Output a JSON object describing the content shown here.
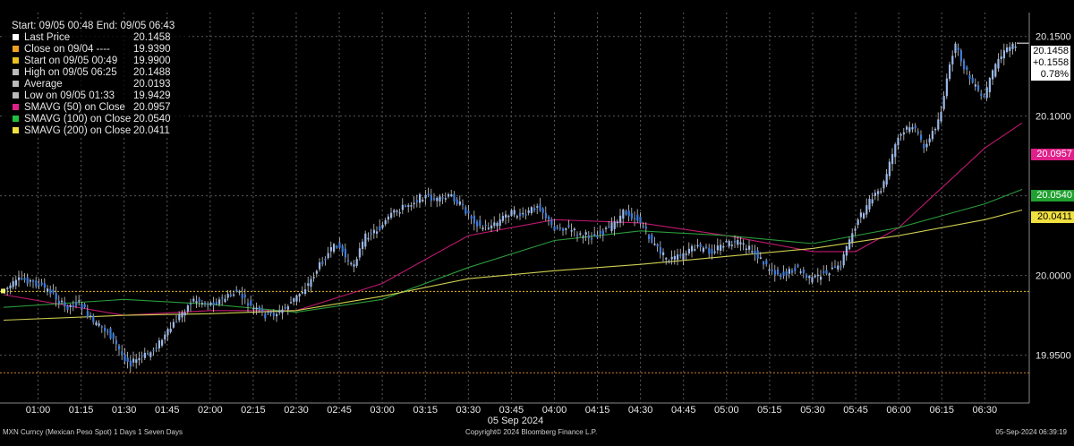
{
  "legend": {
    "header": "Start: 09/05 00:48  End: 09/05 06:43",
    "rows": [
      {
        "label": "Last Price",
        "value": "20.1458",
        "color": "#ffffff"
      },
      {
        "label": "Close on 09/04 ----",
        "value": "19.9390",
        "color": "#f0a020"
      },
      {
        "label": "Start on 09/05 00:49",
        "value": "19.9900",
        "color": "#e8c020"
      },
      {
        "label": "High on 09/05 06:25",
        "value": "20.1488",
        "color": "#bbbbbb"
      },
      {
        "label": "Average",
        "value": "20.0193",
        "color": "#bbbbbb"
      },
      {
        "label": "Low on 09/05 01:33",
        "value": "19.9429",
        "color": "#bbbbbb"
      },
      {
        "label": "SMAVG (50)  on Close",
        "value": "20.0957",
        "color": "#e0208a"
      },
      {
        "label": "SMAVG (100)  on Close",
        "value": "20.0540",
        "color": "#20c040"
      },
      {
        "label": "SMAVG (200)  on Close",
        "value": "20.0411",
        "color": "#f0e040"
      }
    ]
  },
  "tags": {
    "last": "20.1458",
    "change": "+0.1558",
    "pct": "0.78%",
    "sma50": "20.0957",
    "sma100": "20.0540",
    "sma200": "20.0411"
  },
  "colors": {
    "candle": "#3d7ad8",
    "wick": "#cccccc",
    "sma50": "#c01870",
    "sma100": "#2a9a3a",
    "sma200": "#cfcf50",
    "start_line": "#e8c020",
    "close_line": "#d08030",
    "grid": "#5a5a5a"
  },
  "footer": {
    "left": "MXN Curncy (Mexican Peso Spot) 1 Days 1 Seven Days",
    "center": "Copyright© 2024 Bloomberg Finance L.P.",
    "right": "05-Sep-2024 06:39:19"
  },
  "chart_data": {
    "type": "line",
    "date_label": "05 Sep 2024",
    "x_ticks": [
      "01:00",
      "01:15",
      "01:30",
      "01:45",
      "02:00",
      "02:15",
      "02:30",
      "02:45",
      "03:00",
      "03:15",
      "03:30",
      "03:45",
      "04:00",
      "04:15",
      "04:30",
      "04:45",
      "05:00",
      "05:15",
      "05:30",
      "05:45",
      "06:00",
      "06:15",
      "06:30"
    ],
    "y_ticks": [
      "19.9500",
      "20.0000",
      "20.0500",
      "20.1000",
      "20.1500"
    ],
    "ylim": [
      19.92,
      20.165
    ],
    "xlim": [
      "00:48",
      "06:43"
    ],
    "reference_lines": [
      {
        "name": "Start on 09/05 00:49",
        "value": 19.99
      },
      {
        "name": "Close on 09/04",
        "value": 19.939
      }
    ],
    "series": [
      {
        "name": "Last Price",
        "x": [
          "00:48",
          "00:55",
          "01:00",
          "01:05",
          "01:10",
          "01:15",
          "01:20",
          "01:25",
          "01:30",
          "01:33",
          "01:40",
          "01:45",
          "01:50",
          "01:55",
          "02:00",
          "02:05",
          "02:10",
          "02:15",
          "02:20",
          "02:25",
          "02:30",
          "02:35",
          "02:40",
          "02:45",
          "02:50",
          "02:55",
          "03:00",
          "03:05",
          "03:10",
          "03:15",
          "03:20",
          "03:25",
          "03:30",
          "03:35",
          "03:40",
          "03:45",
          "03:50",
          "03:55",
          "04:00",
          "04:05",
          "04:10",
          "04:15",
          "04:20",
          "04:25",
          "04:30",
          "04:35",
          "04:40",
          "04:45",
          "04:50",
          "04:55",
          "05:00",
          "05:05",
          "05:10",
          "05:15",
          "05:20",
          "05:25",
          "05:30",
          "05:35",
          "05:40",
          "05:45",
          "05:50",
          "05:55",
          "06:00",
          "06:05",
          "06:10",
          "06:15",
          "06:20",
          "06:25",
          "06:30",
          "06:35",
          "06:40",
          "06:43"
        ],
        "values": [
          19.99,
          19.998,
          19.995,
          19.99,
          19.98,
          19.983,
          19.97,
          19.965,
          19.95,
          19.945,
          19.952,
          19.962,
          19.975,
          19.985,
          19.982,
          19.985,
          19.99,
          19.98,
          19.975,
          19.977,
          19.985,
          19.995,
          20.01,
          20.02,
          20.005,
          20.025,
          20.03,
          20.04,
          20.045,
          20.05,
          20.047,
          20.05,
          20.04,
          20.03,
          20.032,
          20.04,
          20.037,
          20.045,
          20.03,
          20.03,
          20.025,
          20.025,
          20.03,
          20.04,
          20.035,
          20.02,
          20.01,
          20.012,
          20.018,
          20.015,
          20.02,
          20.02,
          20.015,
          20.005,
          20.0,
          20.005,
          19.997,
          20.002,
          20.005,
          20.03,
          20.045,
          20.055,
          20.085,
          20.095,
          20.08,
          20.1,
          20.145,
          20.125,
          20.11,
          20.135,
          20.145,
          20.1458
        ]
      },
      {
        "name": "SMAVG (50) on Close",
        "x": [
          "00:48",
          "01:30",
          "02:00",
          "02:30",
          "03:00",
          "03:30",
          "04:00",
          "04:30",
          "05:00",
          "05:30",
          "05:45",
          "06:00",
          "06:15",
          "06:30",
          "06:43"
        ],
        "values": [
          19.988,
          19.975,
          19.978,
          19.978,
          19.995,
          20.025,
          20.035,
          20.033,
          20.025,
          20.015,
          20.015,
          20.03,
          20.055,
          20.08,
          20.0957
        ]
      },
      {
        "name": "SMAVG (100) on Close",
        "x": [
          "00:48",
          "01:30",
          "02:00",
          "02:30",
          "03:00",
          "03:30",
          "04:00",
          "04:30",
          "05:00",
          "05:30",
          "06:00",
          "06:30",
          "06:43"
        ],
        "values": [
          19.98,
          19.985,
          19.982,
          19.977,
          19.985,
          20.005,
          20.022,
          20.028,
          20.025,
          20.02,
          20.03,
          20.045,
          20.054
        ]
      },
      {
        "name": "SMAVG (200) on Close",
        "x": [
          "00:48",
          "01:30",
          "02:00",
          "02:30",
          "03:00",
          "03:30",
          "04:00",
          "04:30",
          "05:00",
          "05:30",
          "06:00",
          "06:30",
          "06:43"
        ],
        "values": [
          19.972,
          19.975,
          19.976,
          19.978,
          19.987,
          19.998,
          20.003,
          20.007,
          20.012,
          20.017,
          20.025,
          20.035,
          20.0411
        ]
      }
    ]
  }
}
